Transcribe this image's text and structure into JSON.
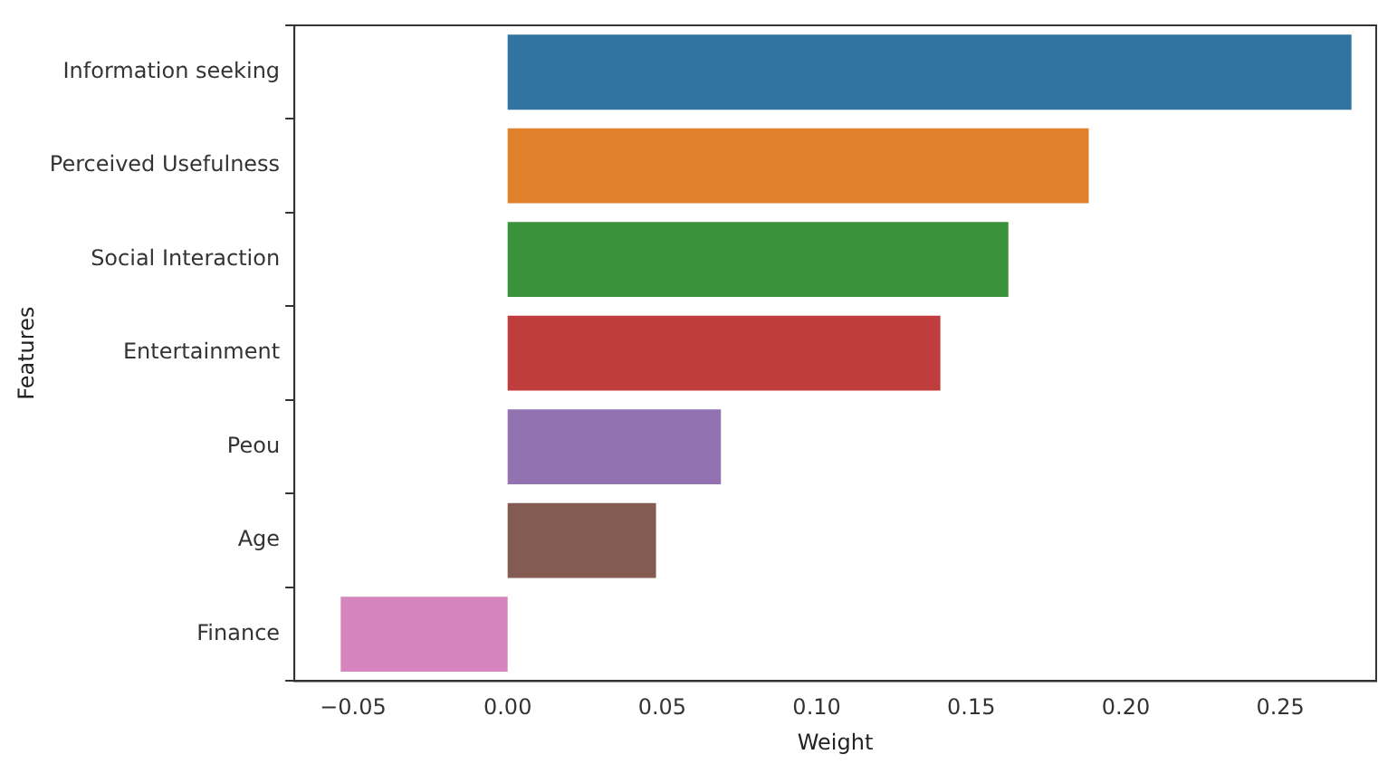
{
  "chart_data": {
    "type": "bar",
    "orientation": "horizontal",
    "xlabel": "Weight",
    "ylabel": "Features",
    "categories": [
      "Information seeking",
      "Perceived Usefulness",
      "Social Interaction",
      "Entertainment",
      "Peou",
      "Age",
      "Finance"
    ],
    "values": [
      0.273,
      0.188,
      0.162,
      0.14,
      0.069,
      0.048,
      -0.054
    ],
    "colors": [
      "#3274a1",
      "#e1812c",
      "#3a923a",
      "#c03d3e",
      "#9372b2",
      "#845b53",
      "#d684bd"
    ],
    "xlim": [
      -0.069,
      0.281
    ],
    "xticks": [
      {
        "value": -0.05,
        "label": "−0.05"
      },
      {
        "value": 0,
        "label": "0.00"
      },
      {
        "value": 0.05,
        "label": "0.05"
      },
      {
        "value": 0.1,
        "label": "0.10"
      },
      {
        "value": 0.15,
        "label": "0.15"
      },
      {
        "value": 0.2,
        "label": "0.20"
      },
      {
        "value": 0.25,
        "label": "0.25"
      }
    ],
    "grid": false,
    "legend": false
  }
}
